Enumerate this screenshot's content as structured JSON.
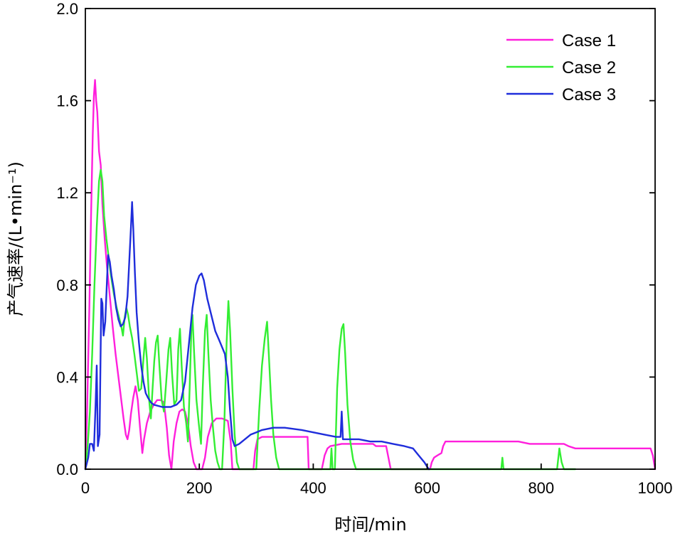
{
  "chart_data": {
    "type": "line",
    "xlabel": "时间/min",
    "ylabel": "产气速率/(L•min⁻¹)",
    "xlim": [
      0,
      1000
    ],
    "ylim": [
      0,
      2.0
    ],
    "xticks": [
      "0",
      "200",
      "400",
      "600",
      "800",
      "1000"
    ],
    "yticks": [
      "0.0",
      "0.4",
      "0.8",
      "1.2",
      "1.6",
      "2.0"
    ],
    "grid": false,
    "legend_position": "top-right",
    "series": [
      {
        "name": "Case 1",
        "color": "#ff1fdc",
        "points": [
          [
            0,
            0
          ],
          [
            3,
            0.25
          ],
          [
            7,
            0.7
          ],
          [
            10,
            1.1
          ],
          [
            13,
            1.45
          ],
          [
            15,
            1.62
          ],
          [
            17,
            1.69
          ],
          [
            19,
            1.6
          ],
          [
            21,
            1.55
          ],
          [
            24,
            1.38
          ],
          [
            27,
            1.32
          ],
          [
            30,
            1.15
          ],
          [
            34,
            1.0
          ],
          [
            38,
            0.88
          ],
          [
            43,
            0.75
          ],
          [
            48,
            0.62
          ],
          [
            53,
            0.5
          ],
          [
            58,
            0.4
          ],
          [
            63,
            0.3
          ],
          [
            67,
            0.22
          ],
          [
            71,
            0.15
          ],
          [
            74,
            0.13
          ],
          [
            77,
            0.17
          ],
          [
            80,
            0.24
          ],
          [
            84,
            0.31
          ],
          [
            88,
            0.36
          ],
          [
            92,
            0.3
          ],
          [
            96,
            0.18
          ],
          [
            100,
            0.07
          ],
          [
            103,
            0.13
          ],
          [
            108,
            0.2
          ],
          [
            114,
            0.25
          ],
          [
            120,
            0.28
          ],
          [
            126,
            0.3
          ],
          [
            132,
            0.3
          ],
          [
            138,
            0.29
          ],
          [
            143,
            0.18
          ],
          [
            147,
            0.06
          ],
          [
            151,
            0.0
          ],
          [
            155,
            0.12
          ],
          [
            160,
            0.2
          ],
          [
            165,
            0.25
          ],
          [
            170,
            0.26
          ],
          [
            175,
            0.25
          ],
          [
            180,
            0.2
          ],
          [
            185,
            0.1
          ],
          [
            190,
            0.03
          ],
          [
            195,
            0.0
          ],
          [
            205,
            0.0
          ],
          [
            210,
            0.05
          ],
          [
            215,
            0.14
          ],
          [
            222,
            0.2
          ],
          [
            230,
            0.22
          ],
          [
            240,
            0.22
          ],
          [
            250,
            0.21
          ],
          [
            255,
            0.12
          ],
          [
            258,
            0.0
          ],
          [
            295,
            0.0
          ],
          [
            298,
            0.08
          ],
          [
            302,
            0.13
          ],
          [
            310,
            0.14
          ],
          [
            330,
            0.14
          ],
          [
            360,
            0.14
          ],
          [
            385,
            0.14
          ],
          [
            390,
            0.14
          ],
          [
            392,
            0.0
          ],
          [
            415,
            0.0
          ],
          [
            420,
            0.06
          ],
          [
            425,
            0.09
          ],
          [
            430,
            0.1
          ],
          [
            450,
            0.11
          ],
          [
            480,
            0.11
          ],
          [
            505,
            0.11
          ],
          [
            510,
            0.1
          ],
          [
            520,
            0.1
          ],
          [
            528,
            0.1
          ],
          [
            532,
            0.05
          ],
          [
            536,
            0.0
          ],
          [
            605,
            0.0
          ],
          [
            608,
            0.03
          ],
          [
            612,
            0.05
          ],
          [
            618,
            0.06
          ],
          [
            625,
            0.07
          ],
          [
            628,
            0.1
          ],
          [
            632,
            0.12
          ],
          [
            640,
            0.12
          ],
          [
            700,
            0.12
          ],
          [
            760,
            0.12
          ],
          [
            780,
            0.11
          ],
          [
            840,
            0.11
          ],
          [
            848,
            0.1
          ],
          [
            860,
            0.09
          ],
          [
            880,
            0.09
          ],
          [
            910,
            0.09
          ],
          [
            992,
            0.09
          ],
          [
            996,
            0.06
          ],
          [
            1000,
            0.0
          ]
        ]
      },
      {
        "name": "Case 2",
        "color": "#33ee33",
        "points": [
          [
            0,
            0
          ],
          [
            4,
            0.1
          ],
          [
            8,
            0.25
          ],
          [
            12,
            0.5
          ],
          [
            16,
            0.8
          ],
          [
            20,
            1.05
          ],
          [
            24,
            1.25
          ],
          [
            27,
            1.3
          ],
          [
            30,
            1.25
          ],
          [
            33,
            1.1
          ],
          [
            37,
            1.0
          ],
          [
            41,
            0.92
          ],
          [
            45,
            0.84
          ],
          [
            50,
            0.76
          ],
          [
            55,
            0.7
          ],
          [
            60,
            0.65
          ],
          [
            63,
            0.62
          ],
          [
            66,
            0.58
          ],
          [
            69,
            0.66
          ],
          [
            72,
            0.7
          ],
          [
            75,
            0.67
          ],
          [
            78,
            0.62
          ],
          [
            82,
            0.57
          ],
          [
            86,
            0.5
          ],
          [
            90,
            0.42
          ],
          [
            94,
            0.34
          ],
          [
            98,
            0.35
          ],
          [
            102,
            0.48
          ],
          [
            105,
            0.57
          ],
          [
            108,
            0.48
          ],
          [
            112,
            0.3
          ],
          [
            115,
            0.22
          ],
          [
            118,
            0.35
          ],
          [
            121,
            0.47
          ],
          [
            124,
            0.55
          ],
          [
            127,
            0.58
          ],
          [
            130,
            0.45
          ],
          [
            134,
            0.3
          ],
          [
            138,
            0.25
          ],
          [
            142,
            0.38
          ],
          [
            146,
            0.52
          ],
          [
            149,
            0.57
          ],
          [
            152,
            0.42
          ],
          [
            156,
            0.28
          ],
          [
            160,
            0.3
          ],
          [
            163,
            0.52
          ],
          [
            166,
            0.61
          ],
          [
            169,
            0.45
          ],
          [
            173,
            0.27
          ],
          [
            177,
            0.2
          ],
          [
            180,
            0.12
          ],
          [
            183,
            0.35
          ],
          [
            186,
            0.6
          ],
          [
            188,
            0.67
          ],
          [
            191,
            0.5
          ],
          [
            195,
            0.3
          ],
          [
            199,
            0.2
          ],
          [
            203,
            0.11
          ],
          [
            206,
            0.35
          ],
          [
            210,
            0.6
          ],
          [
            213,
            0.67
          ],
          [
            216,
            0.5
          ],
          [
            220,
            0.3
          ],
          [
            224,
            0.18
          ],
          [
            228,
            0.08
          ],
          [
            232,
            0.03
          ],
          [
            236,
            0.0
          ],
          [
            240,
            0.0
          ],
          [
            244,
            0.2
          ],
          [
            248,
            0.55
          ],
          [
            251,
            0.73
          ],
          [
            254,
            0.6
          ],
          [
            258,
            0.35
          ],
          [
            262,
            0.15
          ],
          [
            266,
            0.03
          ],
          [
            270,
            0.0
          ],
          [
            300,
            0.0
          ],
          [
            305,
            0.25
          ],
          [
            310,
            0.45
          ],
          [
            315,
            0.57
          ],
          [
            319,
            0.64
          ],
          [
            322,
            0.5
          ],
          [
            326,
            0.3
          ],
          [
            330,
            0.15
          ],
          [
            335,
            0.05
          ],
          [
            340,
            0.0
          ],
          [
            430,
            0.0
          ],
          [
            432,
            0.09
          ],
          [
            434,
            0.0
          ],
          [
            438,
            0.0
          ],
          [
            442,
            0.35
          ],
          [
            446,
            0.52
          ],
          [
            450,
            0.61
          ],
          [
            453,
            0.63
          ],
          [
            456,
            0.5
          ],
          [
            460,
            0.28
          ],
          [
            465,
            0.12
          ],
          [
            470,
            0.04
          ],
          [
            475,
            0.0
          ],
          [
            730,
            0.0
          ],
          [
            732,
            0.05
          ],
          [
            734,
            0.0
          ],
          [
            828,
            0.0
          ],
          [
            832,
            0.09
          ],
          [
            836,
            0.03
          ],
          [
            840,
            0.0
          ],
          [
            860,
            0.0
          ]
        ]
      },
      {
        "name": "Case 3",
        "color": "#1f2ddb",
        "points": [
          [
            0,
            0
          ],
          [
            5,
            0.05
          ],
          [
            8,
            0.11
          ],
          [
            12,
            0.11
          ],
          [
            15,
            0.08
          ],
          [
            18,
            0.28
          ],
          [
            20,
            0.45
          ],
          [
            22,
            0.1
          ],
          [
            25,
            0.15
          ],
          [
            28,
            0.74
          ],
          [
            30,
            0.72
          ],
          [
            32,
            0.58
          ],
          [
            35,
            0.64
          ],
          [
            38,
            0.82
          ],
          [
            40,
            0.93
          ],
          [
            43,
            0.9
          ],
          [
            46,
            0.84
          ],
          [
            50,
            0.78
          ],
          [
            54,
            0.7
          ],
          [
            58,
            0.65
          ],
          [
            62,
            0.62
          ],
          [
            66,
            0.63
          ],
          [
            70,
            0.66
          ],
          [
            74,
            0.75
          ],
          [
            77,
            0.9
          ],
          [
            80,
            1.05
          ],
          [
            82,
            1.16
          ],
          [
            84,
            1.05
          ],
          [
            87,
            0.85
          ],
          [
            90,
            0.68
          ],
          [
            94,
            0.55
          ],
          [
            98,
            0.45
          ],
          [
            102,
            0.38
          ],
          [
            106,
            0.33
          ],
          [
            110,
            0.31
          ],
          [
            115,
            0.29
          ],
          [
            120,
            0.28
          ],
          [
            135,
            0.27
          ],
          [
            150,
            0.27
          ],
          [
            160,
            0.28
          ],
          [
            168,
            0.3
          ],
          [
            175,
            0.38
          ],
          [
            182,
            0.55
          ],
          [
            188,
            0.7
          ],
          [
            194,
            0.8
          ],
          [
            200,
            0.84
          ],
          [
            204,
            0.85
          ],
          [
            208,
            0.82
          ],
          [
            214,
            0.74
          ],
          [
            220,
            0.68
          ],
          [
            228,
            0.6
          ],
          [
            235,
            0.56
          ],
          [
            240,
            0.53
          ],
          [
            245,
            0.5
          ],
          [
            250,
            0.4
          ],
          [
            254,
            0.25
          ],
          [
            258,
            0.13
          ],
          [
            262,
            0.1
          ],
          [
            270,
            0.11
          ],
          [
            280,
            0.13
          ],
          [
            290,
            0.15
          ],
          [
            300,
            0.16
          ],
          [
            310,
            0.17
          ],
          [
            330,
            0.18
          ],
          [
            350,
            0.18
          ],
          [
            380,
            0.17
          ],
          [
            400,
            0.16
          ],
          [
            420,
            0.15
          ],
          [
            440,
            0.14
          ],
          [
            448,
            0.14
          ],
          [
            450,
            0.25
          ],
          [
            452,
            0.13
          ],
          [
            460,
            0.13
          ],
          [
            480,
            0.13
          ],
          [
            500,
            0.12
          ],
          [
            520,
            0.12
          ],
          [
            540,
            0.11
          ],
          [
            560,
            0.1
          ],
          [
            575,
            0.09
          ],
          [
            585,
            0.06
          ],
          [
            595,
            0.03
          ],
          [
            600,
            0.01
          ],
          [
            603,
            0.0
          ]
        ]
      }
    ]
  }
}
